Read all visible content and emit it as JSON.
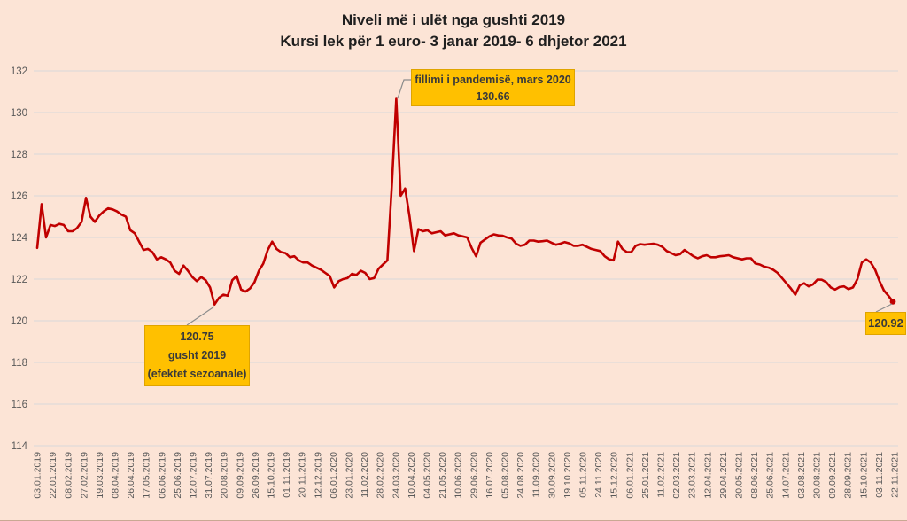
{
  "title": {
    "line1": "Niveli më i ulët nga gushti 2019",
    "line2": "Kursi lek për 1 euro- 3 janar 2019- 6 dhjetor 2021"
  },
  "annotations": {
    "pandemic": {
      "line1": "fillimi i pandemisë, mars 2020",
      "line2": "130.66"
    },
    "august2019": {
      "line1": "120.75",
      "line2": "gusht 2019",
      "line3": "(efektet sezoanale)"
    },
    "endpoint": {
      "label": "120.92"
    }
  },
  "colors": {
    "background": "#fce4d6",
    "line": "#c00000",
    "gridline": "#d9d9d9",
    "axis_line": "#bfbfbf",
    "tick_text": "#595959",
    "annotation_fill": "#ffc000",
    "leader_line": "#8c8c8c",
    "title_text": "#1f1f1f"
  },
  "chart_data": {
    "type": "line",
    "title": "Niveli më i ulët nga gushti 2019",
    "subtitle": "Kursi lek për 1 euro- 3 janar 2019- 6 dhjetor 2021",
    "xlabel": "",
    "ylabel": "",
    "ylim": [
      114,
      132
    ],
    "y_ticks": [
      132,
      130,
      128,
      126,
      124,
      122,
      120,
      118,
      116,
      114
    ],
    "grid": "horizontal",
    "legend": "none",
    "x_tick_labels": [
      "03.01.2019",
      "22.01.2019",
      "08.02.2019",
      "27.02.2019",
      "19.03.2019",
      "08.04.2019",
      "26.04.2019",
      "17.05.2019",
      "06.06.2019",
      "25.06.2019",
      "12.07.2019",
      "31.07.2019",
      "20.08.2019",
      "09.09.2019",
      "26.09.2019",
      "15.10.2019",
      "01.11.2019",
      "20.11.2019",
      "12.12.2019",
      "06.01.2020",
      "23.01.2020",
      "11.02.2020",
      "28.02.2020",
      "24.03.2020",
      "10.04.2020",
      "04.05.2020",
      "21.05.2020",
      "10.06.2020",
      "29.06.2020",
      "16.07.2020",
      "05.08.2020",
      "24.08.2020",
      "11.09.2020",
      "30.09.2020",
      "19.10.2020",
      "05.11.2020",
      "24.11.2020",
      "15.12.2020",
      "06.01.2021",
      "25.01.2021",
      "11.02.2021",
      "02.03.2021",
      "23.03.2021",
      "12.04.2021",
      "29.04.2021",
      "20.05.2021",
      "08.06.2021",
      "25.06.2021",
      "14.07.2021",
      "03.08.2021",
      "20.08.2021",
      "09.09.2021",
      "28.09.2021",
      "15.10.2021",
      "03.11.2021",
      "22.11.2021"
    ],
    "series": [
      {
        "name": "Kursi lek per 1 euro",
        "key_points": {
          "start_03.01.2019": 123.5,
          "low_gusht_2019": 120.75,
          "peak_mars_2020": 130.66,
          "end_06.12.2021": 120.92
        },
        "values": [
          123.5,
          125.6,
          124.0,
          124.6,
          124.55,
          124.65,
          124.6,
          124.3,
          124.3,
          124.45,
          124.75,
          125.9,
          125.0,
          124.75,
          125.05,
          125.25,
          125.4,
          125.35,
          125.25,
          125.1,
          125.0,
          124.35,
          124.2,
          123.8,
          123.4,
          123.45,
          123.3,
          122.95,
          123.05,
          122.95,
          122.8,
          122.4,
          122.25,
          122.65,
          122.4,
          122.1,
          121.9,
          122.1,
          121.95,
          121.6,
          120.78,
          121.1,
          121.25,
          121.2,
          121.95,
          122.15,
          121.5,
          121.4,
          121.55,
          121.85,
          122.4,
          122.75,
          123.4,
          123.8,
          123.45,
          123.3,
          123.25,
          123.05,
          123.1,
          122.9,
          122.8,
          122.8,
          122.65,
          122.55,
          122.45,
          122.3,
          122.15,
          121.6,
          121.9,
          122.0,
          122.05,
          122.25,
          122.2,
          122.4,
          122.3,
          122.0,
          122.05,
          122.5,
          122.7,
          122.9,
          126.5,
          130.66,
          126.0,
          126.35,
          125.0,
          123.35,
          124.4,
          124.3,
          124.35,
          124.2,
          124.25,
          124.3,
          124.1,
          124.15,
          124.2,
          124.1,
          124.05,
          124.0,
          123.5,
          123.1,
          123.75,
          123.9,
          124.05,
          124.15,
          124.1,
          124.08,
          124.0,
          123.95,
          123.7,
          123.6,
          123.65,
          123.85,
          123.85,
          123.8,
          123.82,
          123.85,
          123.75,
          123.65,
          123.7,
          123.78,
          123.72,
          123.6,
          123.6,
          123.65,
          123.55,
          123.45,
          123.4,
          123.35,
          123.1,
          122.95,
          122.9,
          123.8,
          123.45,
          123.3,
          123.3,
          123.6,
          123.68,
          123.65,
          123.68,
          123.7,
          123.65,
          123.55,
          123.35,
          123.25,
          123.15,
          123.2,
          123.4,
          123.25,
          123.1,
          123.0,
          123.1,
          123.15,
          123.05,
          123.05,
          123.1,
          123.12,
          123.15,
          123.05,
          123.0,
          122.95,
          123.0,
          123.0,
          122.75,
          122.7,
          122.6,
          122.55,
          122.45,
          122.3,
          122.05,
          121.8,
          121.55,
          121.25,
          121.7,
          121.8,
          121.65,
          121.75,
          121.98,
          121.97,
          121.85,
          121.6,
          121.5,
          121.62,
          121.65,
          121.52,
          121.6,
          122.0,
          122.8,
          122.95,
          122.8,
          122.45,
          121.9,
          121.45,
          121.2,
          120.92
        ]
      }
    ]
  }
}
